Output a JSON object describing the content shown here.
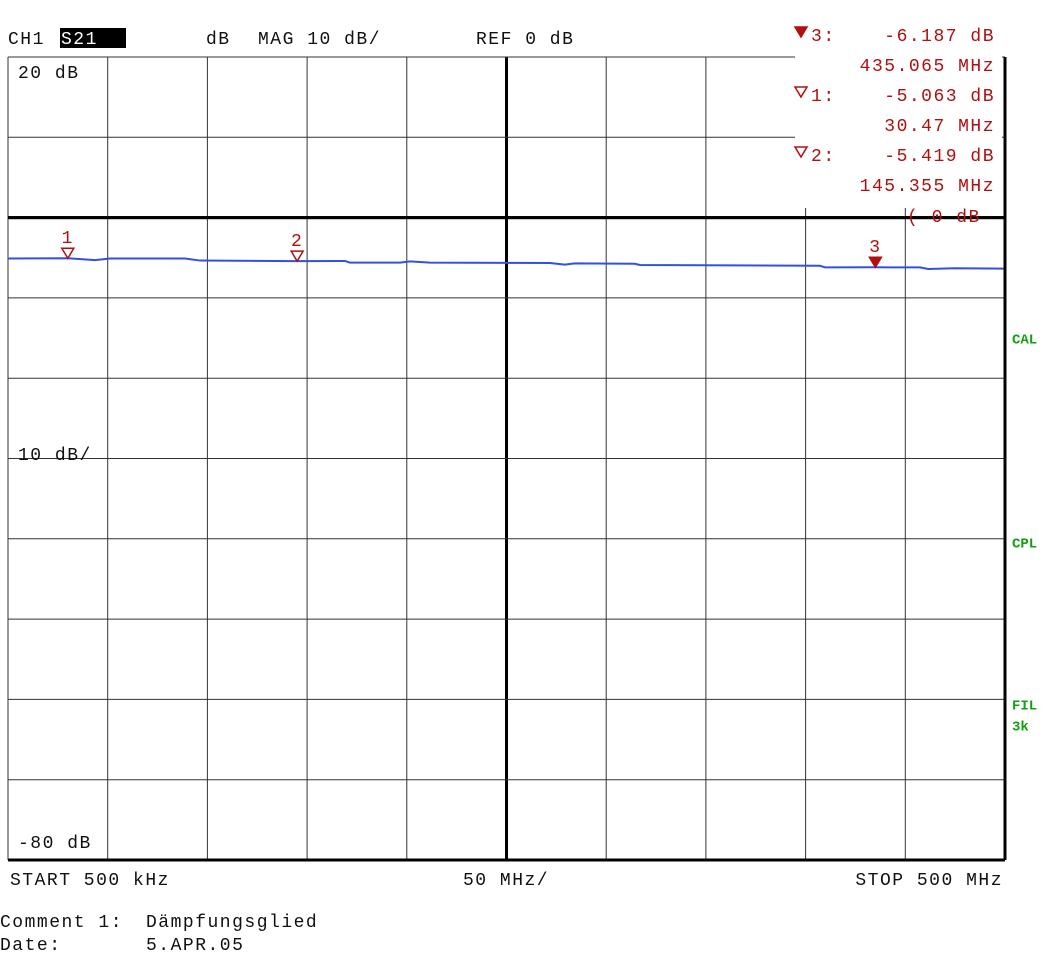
{
  "header": {
    "channel": "CH1",
    "parameter": "S21",
    "unit": "dB",
    "format": "MAG 10 dB/",
    "reference": "REF 0 dB"
  },
  "chart_data": {
    "type": "line",
    "xlim": [
      0.5,
      500
    ],
    "ylim": [
      -80,
      20
    ],
    "xgrid": [
      0.5,
      50.45,
      100.4,
      150.35,
      200.3,
      250.25,
      300.2,
      350.15,
      400.1,
      450.05,
      500
    ],
    "ygrid": [
      20,
      10,
      0,
      -10,
      -20,
      -30,
      -40,
      -50,
      -60,
      -70,
      -80
    ],
    "ref_line": 0,
    "yticks": [
      {
        "value": 20,
        "label": "20 dB"
      },
      {
        "value": -80,
        "label": "-80 dB"
      }
    ],
    "y_scale_label": "10 dB/",
    "x_start_label": "START 500 kHz",
    "x_center_label": "50 MHz/",
    "x_stop_label": "STOP 500 MHz",
    "ref_annotation": "( 0 dB",
    "series": [
      {
        "color": "#3350e6",
        "x": [
          0.5,
          30.5,
          44.1,
          51.6,
          89.2,
          96.7,
          145.3,
          169.3,
          171.8,
          196.9,
          201.9,
          211.9,
          272.0,
          279.5,
          284.6,
          314.6,
          317.1,
          407.3,
          409.8,
          434.9,
          457.4,
          461.5,
          474.9,
          500
        ],
        "values": [
          -5.1,
          -5.06,
          -5.3,
          -5.1,
          -5.1,
          -5.35,
          -5.42,
          -5.4,
          -5.6,
          -5.6,
          -5.45,
          -5.6,
          -5.65,
          -5.85,
          -5.7,
          -5.75,
          -5.9,
          -6.0,
          -6.2,
          -6.19,
          -6.2,
          -6.4,
          -6.3,
          -6.35
        ]
      }
    ],
    "markers": [
      {
        "name": "3",
        "x": 435.065,
        "value": -6.187,
        "value_label": "-6.187 dB",
        "x_label": "435.065 MHz",
        "active": true
      },
      {
        "name": "1",
        "x": 30.47,
        "value": -5.063,
        "value_label": "-5.063 dB",
        "x_label": "30.47 MHz",
        "active": false
      },
      {
        "name": "2",
        "x": 145.355,
        "value": -5.419,
        "value_label": "-5.419 dB",
        "x_label": "145.355 MHz",
        "active": false
      }
    ]
  },
  "side_labels": [
    "CAL",
    "CPL",
    "FIL",
    "3k"
  ],
  "footer": {
    "comment_label": "Comment 1:",
    "comment": "Dämpfungsglied",
    "date_label": "Date:",
    "date": "5.APR.05"
  }
}
